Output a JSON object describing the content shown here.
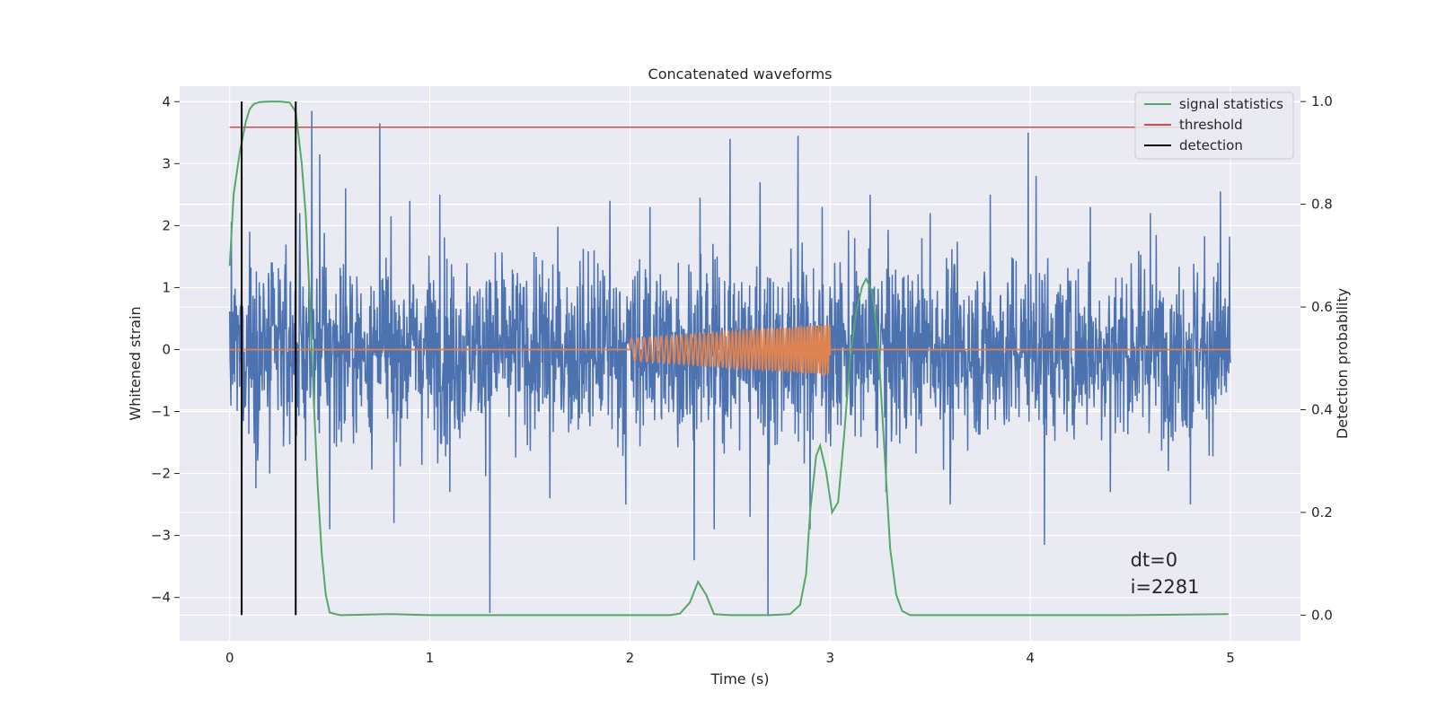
{
  "chart_data": {
    "type": "line",
    "title": "Concatenated waveforms",
    "xlabel": "Time (s)",
    "ylabel": "Whitened strain",
    "y2label": "Detection probability",
    "xlim": [
      -0.25,
      5.35
    ],
    "ylim": [
      -4.7,
      4.25
    ],
    "y2lim": [
      -0.05,
      1.03
    ],
    "x_ticks": [
      0,
      1,
      2,
      3,
      4,
      5
    ],
    "y_ticks": [
      -4,
      -3,
      -2,
      -1,
      0,
      1,
      2,
      3,
      4
    ],
    "y2_ticks": [
      0.0,
      0.2,
      0.4,
      0.6,
      0.8,
      1.0
    ],
    "grid": true,
    "legend_position": "top-right",
    "colors": {
      "strain": "#4c72b0",
      "injection": "#dd8452",
      "signal": "#55a868",
      "threshold": "#c44e52",
      "detection": "#000000",
      "background": "#eaeaf2",
      "grid": "#ffffff"
    },
    "strain": {
      "x_range": [
        0,
        5
      ],
      "envelope": 1.0,
      "peaks": [
        [
          0.1,
          1.9
        ],
        [
          0.2,
          2.1
        ],
        [
          0.35,
          2.2
        ],
        [
          0.41,
          3.85
        ],
        [
          0.45,
          3.15
        ],
        [
          0.58,
          2.6
        ],
        [
          0.75,
          3.65
        ],
        [
          0.9,
          2.4
        ],
        [
          1.05,
          2.5
        ],
        [
          1.3,
          2.3
        ],
        [
          1.6,
          2.45
        ],
        [
          1.9,
          2.4
        ],
        [
          2.1,
          2.3
        ],
        [
          2.35,
          2.45
        ],
        [
          2.5,
          3.4
        ],
        [
          2.65,
          2.7
        ],
        [
          2.84,
          3.45
        ],
        [
          2.96,
          2.3
        ],
        [
          3.2,
          2.5
        ],
        [
          3.5,
          2.2
        ],
        [
          3.8,
          2.5
        ],
        [
          3.99,
          3.5
        ],
        [
          4.03,
          2.8
        ],
        [
          4.3,
          2.3
        ],
        [
          4.6,
          2.2
        ],
        [
          4.95,
          2.55
        ]
      ],
      "troughs": [
        [
          0.06,
          -2.2
        ],
        [
          0.2,
          -2.0
        ],
        [
          0.5,
          -2.9
        ],
        [
          0.82,
          -2.8
        ],
        [
          1.1,
          -2.3
        ],
        [
          1.3,
          -4.25
        ],
        [
          1.6,
          -2.4
        ],
        [
          1.98,
          -2.5
        ],
        [
          2.32,
          -3.4
        ],
        [
          2.42,
          -2.9
        ],
        [
          2.6,
          -2.7
        ],
        [
          2.69,
          -4.3
        ],
        [
          2.9,
          -2.9
        ],
        [
          3.28,
          -2.3
        ],
        [
          3.6,
          -2.5
        ],
        [
          4.07,
          -3.15
        ],
        [
          4.4,
          -2.3
        ],
        [
          4.8,
          -2.5
        ]
      ]
    },
    "injection": {
      "zero_line_x": [
        0,
        5
      ],
      "chirp_x": [
        2.0,
        3.0
      ],
      "amplitude": [
        0.18,
        0.4
      ],
      "frequency": [
        30,
        75
      ]
    },
    "series": [
      {
        "name": "signal statistics",
        "axis": "right",
        "x": [
          0,
          0.02,
          0.05,
          0.08,
          0.1,
          0.12,
          0.15,
          0.2,
          0.25,
          0.3,
          0.33,
          0.36,
          0.38,
          0.4,
          0.42,
          0.44,
          0.46,
          0.48,
          0.5,
          0.55,
          0.8,
          1.0,
          2.0,
          2.2,
          2.25,
          2.3,
          2.34,
          2.38,
          2.42,
          2.5,
          2.7,
          2.8,
          2.85,
          2.88,
          2.9,
          2.93,
          2.95,
          2.98,
          3.01,
          3.04,
          3.07,
          3.1,
          3.13,
          3.16,
          3.18,
          3.21,
          3.24,
          3.27,
          3.3,
          3.33,
          3.36,
          3.4,
          3.5,
          4.0,
          4.5,
          4.99
        ],
        "y": [
          0.68,
          0.82,
          0.9,
          0.96,
          0.985,
          0.995,
          0.999,
          1.0,
          1.0,
          0.998,
          0.98,
          0.88,
          0.78,
          0.62,
          0.42,
          0.25,
          0.12,
          0.04,
          0.005,
          0.0,
          0.002,
          0.0,
          0.0,
          0.0,
          0.003,
          0.025,
          0.065,
          0.04,
          0.002,
          0.0,
          0.0,
          0.002,
          0.02,
          0.08,
          0.2,
          0.31,
          0.33,
          0.28,
          0.2,
          0.22,
          0.35,
          0.5,
          0.59,
          0.64,
          0.655,
          0.63,
          0.53,
          0.33,
          0.13,
          0.04,
          0.008,
          0.0,
          0.0,
          0.0,
          0.0,
          0.002
        ]
      },
      {
        "name": "threshold",
        "axis": "right",
        "x": [
          0,
          5
        ],
        "y": [
          0.95,
          0.95
        ]
      },
      {
        "name": "detection",
        "axis": "right",
        "vlines": [
          0.06,
          0.33
        ],
        "ymin": 0.0,
        "ymax": 1.0
      }
    ],
    "annotation": {
      "x": 4.5,
      "lines": [
        "dt=0",
        "i=2281"
      ]
    }
  }
}
